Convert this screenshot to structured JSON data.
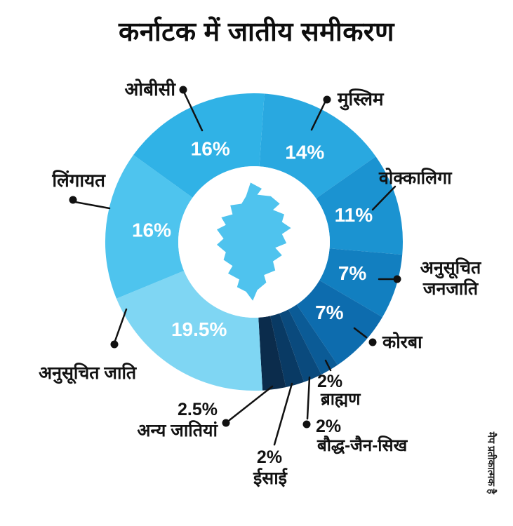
{
  "page": {
    "title": "कर्नाटक में जातीय समीकरण",
    "footnote": "मैप प्रतीकात्मक है"
  },
  "chart_data": {
    "type": "pie",
    "donut": true,
    "title": "कर्नाटक में जातीय समीकरण",
    "unit": "%",
    "start_angle_deg": 4,
    "legend_position": "callout-labels",
    "center_graphic": "karnataka-map-silhouette",
    "map_color": "#4fc3ee",
    "callout_color": "#111111",
    "segments": [
      {
        "name": "मुस्लिम",
        "value": 14,
        "value_label": "14%",
        "color": "#29a8e0",
        "label_inside": true
      },
      {
        "name": "वोक्कालिगा",
        "value": 11,
        "value_label": "11%",
        "color": "#1b93d1",
        "label_inside": true
      },
      {
        "name": "अनुसूचित जनजाति",
        "value": 7,
        "value_label": "7%",
        "color": "#127fc0",
        "label_inside": true
      },
      {
        "name": "कोरबा",
        "value": 7,
        "value_label": "7%",
        "color": "#0d6cae",
        "label_inside": true
      },
      {
        "name": "ब्राह्मण",
        "value": 2,
        "value_label": "2%",
        "color": "#0b5b96",
        "label_inside": false
      },
      {
        "name": "बौद्ध-जैन-सिख",
        "value": 2,
        "value_label": "2%",
        "color": "#0a4a7d",
        "label_inside": false
      },
      {
        "name": "ईसाई",
        "value": 2,
        "value_label": "2%",
        "color": "#093a64",
        "label_inside": false
      },
      {
        "name": "अन्य जातियां",
        "value": 2.5,
        "value_label": "2.5%",
        "color": "#0b2c4c",
        "label_inside": false
      },
      {
        "name": "अनुसूचित जाति",
        "value": 19.5,
        "value_label": "19.5%",
        "color": "#7fd6f3",
        "label_inside": true
      },
      {
        "name": "लिंगायत",
        "value": 16,
        "value_label": "16%",
        "color": "#4ec4ee",
        "label_inside": true
      },
      {
        "name": "ओबीसी",
        "value": 16,
        "value_label": "16%",
        "color": "#30b2e6",
        "label_inside": true
      }
    ]
  }
}
